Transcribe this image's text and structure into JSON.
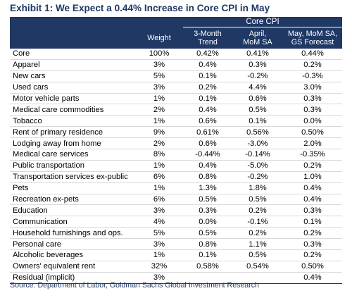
{
  "title": "Exhibit 1: We Expect a 0.44% Increase in Core CPI in May",
  "header": {
    "group_label": "Core CPI",
    "columns": [
      "",
      "Weight",
      "3-Month\nTrend",
      "April,\nMoM SA",
      "May, MoM SA,\nGS Forecast"
    ]
  },
  "rows": [
    {
      "label": "Core",
      "weight": "100%",
      "trend": "0.42%",
      "april": "0.41%",
      "forecast": "0.44%"
    },
    {
      "label": "Apparel",
      "weight": "3%",
      "trend": "0.4%",
      "april": "0.3%",
      "forecast": "0.2%"
    },
    {
      "label": "New cars",
      "weight": "5%",
      "trend": "0.1%",
      "april": "-0.2%",
      "forecast": "-0.3%"
    },
    {
      "label": "Used cars",
      "weight": "3%",
      "trend": "0.2%",
      "april": "4.4%",
      "forecast": "3.0%"
    },
    {
      "label": "Motor vehicle parts",
      "weight": "1%",
      "trend": "0.1%",
      "april": "0.6%",
      "forecast": "0.3%"
    },
    {
      "label": "Medical care commodities",
      "weight": "2%",
      "trend": "0.4%",
      "april": "0.5%",
      "forecast": "0.3%"
    },
    {
      "label": "Tobacco",
      "weight": "1%",
      "trend": "0.6%",
      "april": "0.1%",
      "forecast": "0.0%"
    },
    {
      "label": "Rent of primary residence",
      "weight": "9%",
      "trend": "0.61%",
      "april": "0.56%",
      "forecast": "0.50%"
    },
    {
      "label": "Lodging away from home",
      "weight": "2%",
      "trend": "0.6%",
      "april": "-3.0%",
      "forecast": "2.0%"
    },
    {
      "label": "Medical care services",
      "weight": "8%",
      "trend": "-0.44%",
      "april": "-0.14%",
      "forecast": "-0.35%"
    },
    {
      "label": "Public transportation",
      "weight": "1%",
      "trend": "0.4%",
      "april": "-5.0%",
      "forecast": "0.2%"
    },
    {
      "label": "Transportation services ex-public",
      "weight": "6%",
      "trend": "0.8%",
      "april": "-0.2%",
      "forecast": "1.0%"
    },
    {
      "label": "Pets",
      "weight": "1%",
      "trend": "1.3%",
      "april": "1.8%",
      "forecast": "0.4%"
    },
    {
      "label": "Recreation ex-pets",
      "weight": "6%",
      "trend": "0.5%",
      "april": "0.5%",
      "forecast": "0.4%"
    },
    {
      "label": "Education",
      "weight": "3%",
      "trend": "0.3%",
      "april": "0.2%",
      "forecast": "0.3%"
    },
    {
      "label": "Communication",
      "weight": "4%",
      "trend": "0.0%",
      "april": "-0.1%",
      "forecast": "0.1%"
    },
    {
      "label": "Household furnishings and ops.",
      "weight": "5%",
      "trend": "0.5%",
      "april": "0.2%",
      "forecast": "0.2%"
    },
    {
      "label": "Personal care",
      "weight": "3%",
      "trend": "0.8%",
      "april": "1.1%",
      "forecast": "0.3%"
    },
    {
      "label": "Alcoholic beverages",
      "weight": "1%",
      "trend": "0.1%",
      "april": "0.5%",
      "forecast": "0.2%"
    },
    {
      "label": "Owners' equivalent rent",
      "weight": "32%",
      "trend": "0.58%",
      "april": "0.54%",
      "forecast": "0.50%"
    },
    {
      "label": "Residual (implicit)",
      "weight": "3%",
      "trend": "",
      "april": "",
      "forecast": "0.4%"
    }
  ],
  "source": "Source: Department of Labor, Goldman Sachs Global Investment Research",
  "colors": {
    "header_bg": "#1f3864",
    "title": "#1f3864",
    "row_rule": "#d9d9d9"
  }
}
